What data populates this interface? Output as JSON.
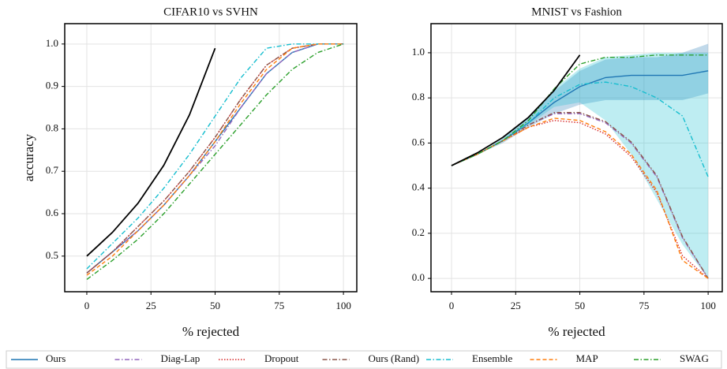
{
  "chart_data": [
    {
      "type": "line",
      "title": "CIFAR10 vs SVHN",
      "xlabel": "% rejected",
      "ylabel": "accuracy",
      "x": [
        0,
        10,
        20,
        30,
        40,
        50,
        60,
        70,
        80,
        90,
        100
      ],
      "xlim": [
        -8.6,
        105.2
      ],
      "ylim": [
        0.416,
        1.048
      ],
      "xticks": [
        0,
        25,
        50,
        75,
        100
      ],
      "yticks": [
        0.5,
        0.6,
        0.7,
        0.8,
        0.9,
        {
          "value": 1,
          "label": "1.0"
        }
      ],
      "grid": true,
      "legend": "bottom",
      "series": [
        {
          "name": "Ours",
          "color": "#1f77b4",
          "linestyle": "solid",
          "values": [
            0.46,
            0.51,
            0.56,
            0.62,
            0.69,
            0.77,
            0.85,
            0.93,
            0.98,
            1.0,
            1.0
          ]
        },
        {
          "name": "Diag-Lap",
          "color": "#9467bd",
          "linestyle": "dashdot",
          "values": [
            0.46,
            0.51,
            0.56,
            0.62,
            0.69,
            0.76,
            0.85,
            0.93,
            0.98,
            1.0,
            1.0
          ]
        },
        {
          "name": "Dropout",
          "color": "#d62728",
          "linestyle": "dotted",
          "values": [
            0.46,
            0.51,
            0.57,
            0.63,
            0.7,
            0.78,
            0.87,
            0.95,
            0.99,
            1.0,
            1.0
          ]
        },
        {
          "name": "Ours (Rand)",
          "color": "#8c564b",
          "linestyle": "dashdot",
          "values": [
            0.46,
            0.51,
            0.57,
            0.63,
            0.7,
            0.78,
            0.87,
            0.95,
            0.99,
            1.0,
            1.0
          ]
        },
        {
          "name": "Ensemble",
          "color": "#17becf",
          "linestyle": "dashdot",
          "values": [
            0.47,
            0.53,
            0.59,
            0.66,
            0.74,
            0.83,
            0.92,
            0.99,
            1.0,
            1.0,
            1.0
          ]
        },
        {
          "name": "MAP",
          "color": "#ff7f0e",
          "linestyle": "dashed",
          "values": [
            0.455,
            0.5,
            0.56,
            0.62,
            0.69,
            0.77,
            0.86,
            0.94,
            0.99,
            1.0,
            1.0
          ]
        },
        {
          "name": "SWAG",
          "color": "#2ca02c",
          "linestyle": "dashdot",
          "values": [
            0.445,
            0.49,
            0.54,
            0.6,
            0.67,
            0.74,
            0.81,
            0.88,
            0.94,
            0.98,
            1.0
          ]
        },
        {
          "color": "#000000",
          "linestyle": "solid",
          "values": [
            0.5,
            0.556,
            0.625,
            0.714,
            0.833,
            0.99,
            null,
            null,
            null,
            null,
            null
          ]
        }
      ]
    },
    {
      "type": "line",
      "title": "MNIST vs Fashion",
      "xlabel": "% rejected",
      "x": [
        0,
        10,
        20,
        30,
        40,
        50,
        60,
        70,
        80,
        90,
        100
      ],
      "xlim": [
        -8,
        105.5
      ],
      "ylim": [
        -0.059,
        1.129
      ],
      "xticks": [
        0,
        25,
        50,
        75,
        100
      ],
      "yticks": [
        {
          "value": 0,
          "label": "0.0"
        },
        0.2,
        0.4,
        0.6,
        0.8,
        {
          "value": 1,
          "label": "1.0"
        }
      ],
      "grid": true,
      "series": [
        {
          "name": "Ours",
          "color": "#1f77b4",
          "linestyle": "solid",
          "values": [
            0.5,
            0.55,
            0.61,
            0.69,
            0.78,
            0.85,
            0.89,
            0.9,
            0.9,
            0.9,
            0.92
          ],
          "lower": [
            0.5,
            0.55,
            0.6,
            0.67,
            0.73,
            0.77,
            0.79,
            0.79,
            0.79,
            0.79,
            0.82
          ],
          "upper": [
            0.5,
            0.55,
            0.62,
            0.71,
            0.83,
            0.92,
            0.97,
            0.98,
            0.98,
            1.0,
            1.04
          ]
        },
        {
          "name": "Diag-Lap",
          "color": "#9467bd",
          "linestyle": "dashdot",
          "values": [
            0.5,
            0.55,
            0.61,
            0.68,
            0.73,
            0.73,
            0.69,
            0.6,
            0.45,
            0.18,
            0.0
          ]
        },
        {
          "name": "Dropout",
          "color": "#d62728",
          "linestyle": "dotted",
          "values": [
            0.5,
            0.55,
            0.61,
            0.67,
            0.7,
            0.69,
            0.64,
            0.54,
            0.38,
            0.1,
            0.0
          ]
        },
        {
          "name": "Ours (Rand)",
          "color": "#8c564b",
          "linestyle": "dashdot",
          "values": [
            0.5,
            0.55,
            0.61,
            0.68,
            0.735,
            0.735,
            0.695,
            0.605,
            0.455,
            0.185,
            0.0
          ]
        },
        {
          "name": "Ensemble",
          "color": "#17becf",
          "linestyle": "dashdot",
          "values": [
            0.5,
            0.55,
            0.61,
            0.69,
            0.8,
            0.86,
            0.87,
            0.85,
            0.8,
            0.72,
            0.45
          ],
          "lower": [
            0.5,
            0.55,
            0.61,
            0.68,
            0.76,
            0.78,
            0.7,
            0.55,
            0.35,
            0.15,
            0.0
          ],
          "upper": [
            0.5,
            0.55,
            0.62,
            0.71,
            0.84,
            0.93,
            0.98,
            0.99,
            1.0,
            1.0,
            1.0
          ]
        },
        {
          "name": "MAP",
          "color": "#ff7f0e",
          "linestyle": "dashed",
          "values": [
            0.5,
            0.55,
            0.61,
            0.67,
            0.71,
            0.7,
            0.65,
            0.55,
            0.39,
            0.08,
            0.0
          ]
        },
        {
          "name": "SWAG",
          "color": "#2ca02c",
          "linestyle": "dashdot",
          "values": [
            0.5,
            0.55,
            0.61,
            0.7,
            0.84,
            0.95,
            0.98,
            0.98,
            0.99,
            0.99,
            0.99
          ]
        },
        {
          "color": "#000000",
          "linestyle": "solid",
          "values": [
            0.5,
            0.556,
            0.625,
            0.714,
            0.833,
            0.99,
            null,
            null,
            null,
            null,
            null
          ]
        }
      ]
    }
  ]
}
